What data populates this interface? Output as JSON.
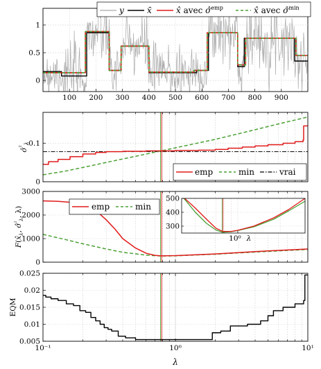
{
  "colors": {
    "signal": "#a9a9a9",
    "truth": "#000000",
    "emp": "#e01a1a",
    "min": "#4aa033",
    "vrai": "#000000",
    "marker_vert": "#4aa033",
    "marker_red": "#e01a1a"
  },
  "chart_data": [
    {
      "id": "signal",
      "type": "line",
      "xlim": [
        0,
        1000
      ],
      "ylim": [
        -0.2,
        1.3
      ],
      "xticks": [
        100,
        200,
        300,
        400,
        500,
        600,
        700,
        800,
        900
      ],
      "yticks": [
        0,
        0.5,
        1
      ],
      "legend": {
        "position": "top-right",
        "entries": [
          "y",
          "x̄",
          "x̂ avec σ̂^emp",
          "x̂ avec σ̂^min"
        ]
      },
      "truth_segments": [
        {
          "x0": 0,
          "x1": 70,
          "y": 0.16
        },
        {
          "x0": 70,
          "x1": 165,
          "y": 0.08
        },
        {
          "x0": 165,
          "x1": 250,
          "y": 0.86
        },
        {
          "x0": 250,
          "x1": 295,
          "y": 0.18
        },
        {
          "x0": 295,
          "x1": 400,
          "y": 0.62
        },
        {
          "x0": 400,
          "x1": 510,
          "y": 0.14
        },
        {
          "x0": 510,
          "x1": 580,
          "y": 0.14
        },
        {
          "x0": 580,
          "x1": 625,
          "y": 0.18
        },
        {
          "x0": 625,
          "x1": 735,
          "y": 0.86
        },
        {
          "x0": 735,
          "x1": 760,
          "y": 0.25
        },
        {
          "x0": 760,
          "x1": 830,
          "y": 0.76
        },
        {
          "x0": 830,
          "x1": 950,
          "y": 0.76
        },
        {
          "x0": 950,
          "x1": 1000,
          "y": 0.35
        }
      ],
      "estimate_segments": [
        {
          "x0": 0,
          "x1": 160,
          "y": 0.14
        },
        {
          "x0": 160,
          "x1": 250,
          "y": 0.88
        },
        {
          "x0": 250,
          "x1": 295,
          "y": 0.18
        },
        {
          "x0": 295,
          "x1": 400,
          "y": 0.62
        },
        {
          "x0": 400,
          "x1": 570,
          "y": 0.15
        },
        {
          "x0": 570,
          "x1": 620,
          "y": 0.18
        },
        {
          "x0": 620,
          "x1": 735,
          "y": 0.86
        },
        {
          "x0": 735,
          "x1": 765,
          "y": 0.28
        },
        {
          "x0": 765,
          "x1": 955,
          "y": 0.76
        },
        {
          "x0": 955,
          "x1": 1000,
          "y": 0.45
        }
      ],
      "noise_sd": 0.28
    },
    {
      "id": "sigma",
      "type": "line",
      "xscale": "log",
      "xlim": [
        0.1,
        10
      ],
      "ylim": [
        0,
        0.18
      ],
      "yticks": [
        0,
        0.1
      ],
      "ylabel": "σ̂²_λ",
      "vline_x": 0.78,
      "legend": {
        "position": "bottom-right",
        "entries": [
          "emp",
          "min",
          "vrai"
        ]
      },
      "series": [
        {
          "name": "emp",
          "points": [
            [
              0.1,
              0.045
            ],
            [
              0.11,
              0.052
            ],
            [
              0.13,
              0.058
            ],
            [
              0.16,
              0.065
            ],
            [
              0.2,
              0.072
            ],
            [
              0.25,
              0.076
            ],
            [
              0.3,
              0.078
            ],
            [
              0.4,
              0.079
            ],
            [
              0.6,
              0.08
            ],
            [
              1,
              0.081
            ],
            [
              1.5,
              0.082
            ],
            [
              2,
              0.084
            ],
            [
              2.5,
              0.087
            ],
            [
              3.2,
              0.09
            ],
            [
              4,
              0.093
            ],
            [
              5,
              0.096
            ],
            [
              6.5,
              0.1
            ],
            [
              8,
              0.104
            ],
            [
              9.2,
              0.108
            ],
            [
              9.3,
              0.145
            ],
            [
              10,
              0.145
            ]
          ]
        },
        {
          "name": "min",
          "points": [
            [
              0.1,
              0.018
            ],
            [
              0.15,
              0.028
            ],
            [
              0.2,
              0.037
            ],
            [
              0.3,
              0.05
            ],
            [
              0.5,
              0.066
            ],
            [
              0.78,
              0.08
            ],
            [
              1,
              0.088
            ],
            [
              2,
              0.11
            ],
            [
              4,
              0.135
            ],
            [
              6,
              0.15
            ],
            [
              10,
              0.168
            ]
          ]
        },
        {
          "name": "vrai",
          "value": 0.078
        }
      ]
    },
    {
      "id": "F",
      "type": "line",
      "xscale": "log",
      "xlim": [
        0.1,
        10
      ],
      "ylim": [
        0,
        3000
      ],
      "yticks": [
        0,
        1000,
        2000,
        3000
      ],
      "ylabel": "F(x̂_λ, σ̂²_λ, λ)",
      "vline_x": 0.78,
      "legend": {
        "position": "top-left",
        "entries": [
          "emp",
          "min"
        ]
      },
      "series": [
        {
          "name": "emp",
          "points": [
            [
              0.1,
              2600
            ],
            [
              0.13,
              2580
            ],
            [
              0.16,
              2540
            ],
            [
              0.2,
              2420
            ],
            [
              0.25,
              2200
            ],
            [
              0.3,
              1800
            ],
            [
              0.35,
              1400
            ],
            [
              0.4,
              1000
            ],
            [
              0.5,
              600
            ],
            [
              0.6,
              380
            ],
            [
              0.7,
              290
            ],
            [
              0.78,
              270
            ],
            [
              1,
              280
            ],
            [
              2,
              350
            ],
            [
              4,
              450
            ],
            [
              10,
              560
            ]
          ]
        },
        {
          "name": "min",
          "points": [
            [
              0.1,
              1180
            ],
            [
              0.15,
              950
            ],
            [
              0.2,
              780
            ],
            [
              0.3,
              560
            ],
            [
              0.4,
              420
            ],
            [
              0.6,
              300
            ],
            [
              0.78,
              260
            ],
            [
              1,
              270
            ],
            [
              2,
              340
            ],
            [
              4,
              430
            ],
            [
              10,
              540
            ]
          ]
        }
      ],
      "inset": {
        "xscale": "log",
        "xlim": [
          0.4,
          3
        ],
        "ylim": [
          250,
          500
        ],
        "yticks": [
          300,
          400,
          500
        ],
        "xtick_label": "10⁰",
        "xlabel": "λ",
        "series": [
          {
            "name": "emp",
            "points": [
              [
                0.4,
                520
              ],
              [
                0.5,
                430
              ],
              [
                0.6,
                350
              ],
              [
                0.7,
                285
              ],
              [
                0.78,
                262
              ],
              [
                0.9,
                262
              ],
              [
                1,
                270
              ],
              [
                1.3,
                300
              ],
              [
                1.8,
                360
              ],
              [
                2.3,
                420
              ],
              [
                3,
                500
              ]
            ]
          },
          {
            "name": "min",
            "points": [
              [
                0.4,
                520
              ],
              [
                0.5,
                400
              ],
              [
                0.6,
                320
              ],
              [
                0.7,
                272
              ],
              [
                0.78,
                256
              ],
              [
                0.9,
                260
              ],
              [
                1,
                268
              ],
              [
                1.3,
                295
              ],
              [
                1.8,
                350
              ],
              [
                2.3,
                410
              ],
              [
                3,
                480
              ]
            ]
          }
        ]
      }
    },
    {
      "id": "eqm",
      "type": "line",
      "xscale": "log",
      "xlim": [
        0.1,
        10
      ],
      "ylim": [
        0.005,
        0.025
      ],
      "yticks": [
        0.005,
        0.01,
        0.015,
        0.02,
        0.025
      ],
      "xticks": [
        0.1,
        1,
        10
      ],
      "xticklabels": [
        "10⁻¹",
        "10⁰",
        "10¹"
      ],
      "xlabel": "λ",
      "ylabel": "EQM",
      "vline_x": 0.78,
      "series": [
        {
          "name": "EQM",
          "points": [
            [
              0.1,
              0.0185
            ],
            [
              0.105,
              0.018
            ],
            [
              0.115,
              0.0175
            ],
            [
              0.13,
              0.017
            ],
            [
              0.15,
              0.016
            ],
            [
              0.17,
              0.0155
            ],
            [
              0.19,
              0.014
            ],
            [
              0.21,
              0.0135
            ],
            [
              0.23,
              0.012
            ],
            [
              0.25,
              0.011
            ],
            [
              0.27,
              0.01
            ],
            [
              0.29,
              0.009
            ],
            [
              0.31,
              0.0085
            ],
            [
              0.33,
              0.008
            ],
            [
              0.37,
              0.0065
            ],
            [
              0.42,
              0.006
            ],
            [
              0.5,
              0.0055
            ],
            [
              0.7,
              0.0055
            ],
            [
              1.8,
              0.0055
            ],
            [
              1.9,
              0.0075
            ],
            [
              2.2,
              0.008
            ],
            [
              2.6,
              0.0095
            ],
            [
              3.5,
              0.01
            ],
            [
              4.4,
              0.011
            ],
            [
              5,
              0.0125
            ],
            [
              5.5,
              0.014
            ],
            [
              6.5,
              0.015
            ],
            [
              8,
              0.016
            ],
            [
              9.3,
              0.017
            ],
            [
              9.5,
              0.0245
            ],
            [
              10,
              0.0245
            ]
          ]
        }
      ]
    }
  ]
}
